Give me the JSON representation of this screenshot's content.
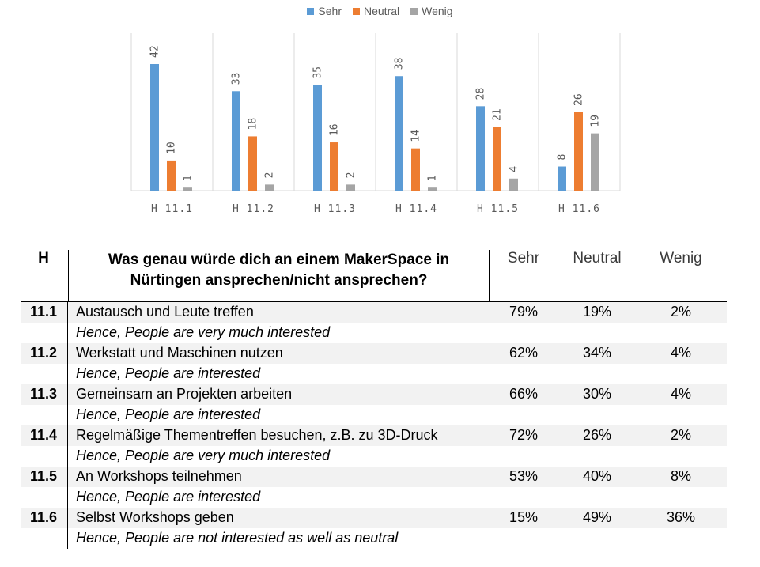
{
  "chart_data": {
    "type": "bar",
    "categories": [
      "H 11.1",
      "H 11.2",
      "H 11.3",
      "H 11.4",
      "H 11.5",
      "H 11.6"
    ],
    "series": [
      {
        "name": "Sehr",
        "color": "#5b9bd5",
        "values": [
          42,
          33,
          35,
          38,
          28,
          8
        ]
      },
      {
        "name": "Neutral",
        "color": "#ed7d31",
        "values": [
          10,
          18,
          16,
          14,
          21,
          26
        ]
      },
      {
        "name": "Wenig",
        "color": "#a5a5a5",
        "values": [
          1,
          2,
          2,
          1,
          4,
          19
        ]
      }
    ],
    "ylim": [
      0,
      42
    ],
    "legend": "top-center",
    "grid": false
  },
  "table": {
    "header": {
      "h": "H",
      "question": "Was genau würde dich an einem MakerSpace in Nürtingen ansprechen/nicht ansprechen?",
      "sehr": "Sehr",
      "neutral": "Neutral",
      "wenig": "Wenig"
    },
    "rows": [
      {
        "id": "11.1",
        "text": "Austausch und Leute treffen",
        "sehr": "79%",
        "neutral": "19%",
        "wenig": "2%",
        "note": "Hence, People are very much interested"
      },
      {
        "id": "11.2",
        "text": "Werkstatt und Maschinen nutzen",
        "sehr": "62%",
        "neutral": "34%",
        "wenig": "4%",
        "note": "Hence, People are interested"
      },
      {
        "id": "11.3",
        "text": "Gemeinsam an Projekten arbeiten",
        "sehr": "66%",
        "neutral": "30%",
        "wenig": "4%",
        "note": "Hence, People are interested"
      },
      {
        "id": "11.4",
        "text": "Regelmäßige Thementreffen besuchen, z.B. zu 3D-Druck",
        "sehr": "72%",
        "neutral": "26%",
        "wenig": "2%",
        "note": "Hence, People are very much interested"
      },
      {
        "id": "11.5",
        "text": "An Workshops teilnehmen",
        "sehr": "53%",
        "neutral": "40%",
        "wenig": "8%",
        "note": "Hence, People are interested"
      },
      {
        "id": "11.6",
        "text": "Selbst Workshops geben",
        "sehr": "15%",
        "neutral": "49%",
        "wenig": "36%",
        "note": "Hence, People are not interested as well as neutral"
      }
    ]
  }
}
